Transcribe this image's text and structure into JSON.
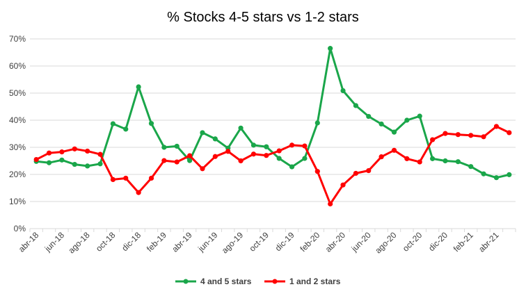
{
  "chart_data": {
    "type": "line",
    "title": "% Stocks 4-5 stars vs 1-2 stars",
    "xlabel": "",
    "ylabel": "",
    "ylim": [
      0,
      70
    ],
    "y_ticks": [
      "0%",
      "10%",
      "20%",
      "30%",
      "40%",
      "50%",
      "60%",
      "70%"
    ],
    "grid": true,
    "legend_position": "bottom",
    "x": [
      "abr-18",
      "may-18",
      "jun-18",
      "jul-18",
      "ago-18",
      "sep-18",
      "oct-18",
      "nov-18",
      "dic-18",
      "ene-19",
      "feb-19",
      "mar-19",
      "abr-19",
      "may-19",
      "jun-19",
      "jul-19",
      "ago-19",
      "sep-19",
      "oct-19",
      "nov-19",
      "dic-19",
      "ene-20",
      "feb-20",
      "mar-20",
      "abr-20",
      "may-20",
      "jun-20",
      "jul-20",
      "ago-20",
      "sep-20",
      "oct-20",
      "nov-20",
      "dic-20",
      "ene-21",
      "feb-21",
      "mar-21",
      "abr-21",
      "may-21"
    ],
    "x_tick_labels": [
      "abr-18",
      "jun-18",
      "ago-18",
      "oct-18",
      "dic-18",
      "feb-19",
      "abr-19",
      "jun-19",
      "ago-19",
      "oct-19",
      "dic-19",
      "feb-20",
      "abr-20",
      "jun-20",
      "ago-20",
      "oct-20",
      "dic-20",
      "feb-21",
      "abr-21"
    ],
    "series": [
      {
        "name": "4 and 5 stars",
        "color": "#1aa64a",
        "values": [
          24.8,
          24.3,
          25.3,
          23.7,
          23.1,
          23.9,
          38.7,
          36.7,
          52.3,
          38.8,
          30.0,
          30.4,
          25.1,
          35.4,
          33.1,
          29.7,
          37.1,
          30.8,
          30.2,
          25.9,
          22.8,
          25.9,
          39.0,
          66.5,
          50.9,
          45.4,
          41.4,
          38.6,
          35.6,
          40.0,
          41.5,
          25.8,
          25.0,
          24.7,
          22.9,
          20.2,
          18.8,
          19.9
        ]
      },
      {
        "name": "1 and 2 stars",
        "color": "#ff0000",
        "values": [
          25.5,
          27.9,
          28.3,
          29.4,
          28.6,
          27.4,
          18.1,
          18.6,
          13.3,
          18.6,
          25.1,
          24.6,
          26.9,
          22.1,
          26.6,
          28.5,
          25.0,
          27.5,
          27.0,
          28.7,
          30.8,
          30.5,
          21.1,
          9.1,
          16.1,
          20.4,
          21.4,
          26.5,
          28.9,
          25.8,
          24.6,
          32.8,
          35.1,
          34.7,
          34.4,
          33.9,
          37.7,
          35.4
        ]
      }
    ]
  }
}
